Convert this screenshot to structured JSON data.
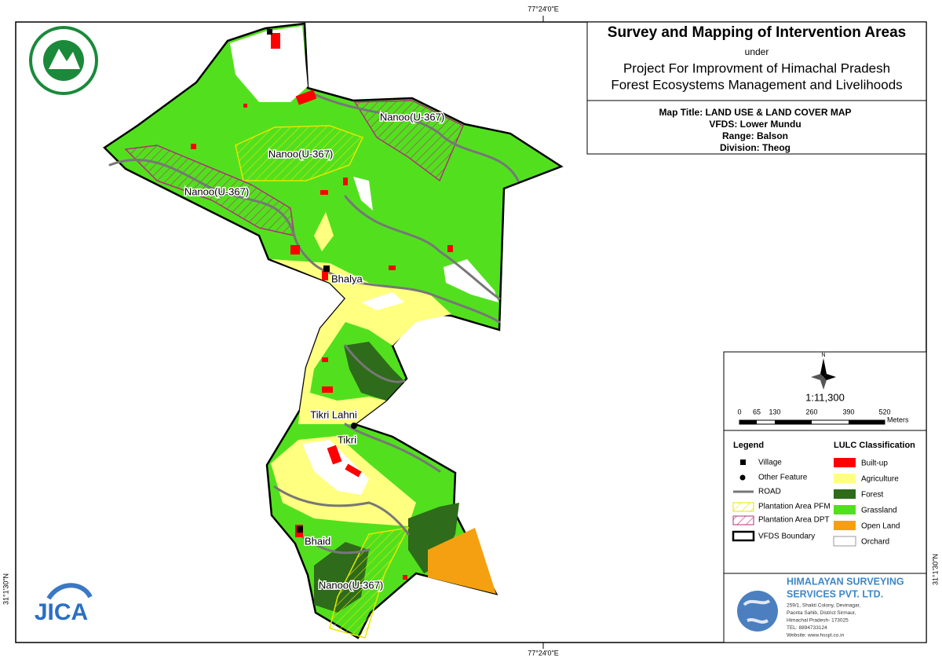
{
  "coordinates": {
    "top": "77°24'0\"E",
    "bottom": "77°24'0\"E",
    "left": "31°1'30\"N",
    "right": "31°1'30\"N"
  },
  "header": {
    "title": "Survey and Mapping of Intervention Areas",
    "under": "under",
    "project_line1": "Project For Improvment of Himachal Pradesh",
    "project_line2": "Forest Ecosystems Management and Livelihoods"
  },
  "map_info": {
    "map_title": "Map Title: LAND USE & LAND COVER MAP",
    "vfds": "VFDS: Lower Mundu",
    "range": "Range: Balson",
    "division": "Division: Theog"
  },
  "labels": [
    "Nanoo(U-367)",
    "Nanoo(U-367)",
    "Nanoo(U-367)",
    "Bhalya",
    "Tikri Lahni",
    "Tikri",
    "Bhaid",
    "Nanoo(U-367)"
  ],
  "north": "N",
  "scale": {
    "ratio": "1:11,300",
    "ticks": [
      "0",
      "65",
      "130",
      "260",
      "390",
      "520"
    ],
    "unit": "Meters"
  },
  "legend": {
    "title": "Legend",
    "items": [
      "Village",
      "Other Feature",
      "ROAD",
      "Plantation Area PFM",
      "Plantation Area DPT",
      "VFDS Boundary"
    ]
  },
  "lulc": {
    "title": "LULC Classification",
    "items": [
      "Built-up",
      "Agriculture",
      "Forest",
      "Grassland",
      "Open Land",
      "Orchard"
    ]
  },
  "company": {
    "name_line1": "HIMALAYAN SURVEYING",
    "name_line2": "SERVICES PVT. LTD.",
    "address": [
      "259/1, Shakti Colony, Devinagar,",
      "Paonta Sahib, District Sirmaur,",
      "Himachal Pradesh- 173025",
      "TEL: 8894733124",
      "Website: www.hsspl.co.in"
    ]
  },
  "logos": {
    "jica": "JICA"
  }
}
